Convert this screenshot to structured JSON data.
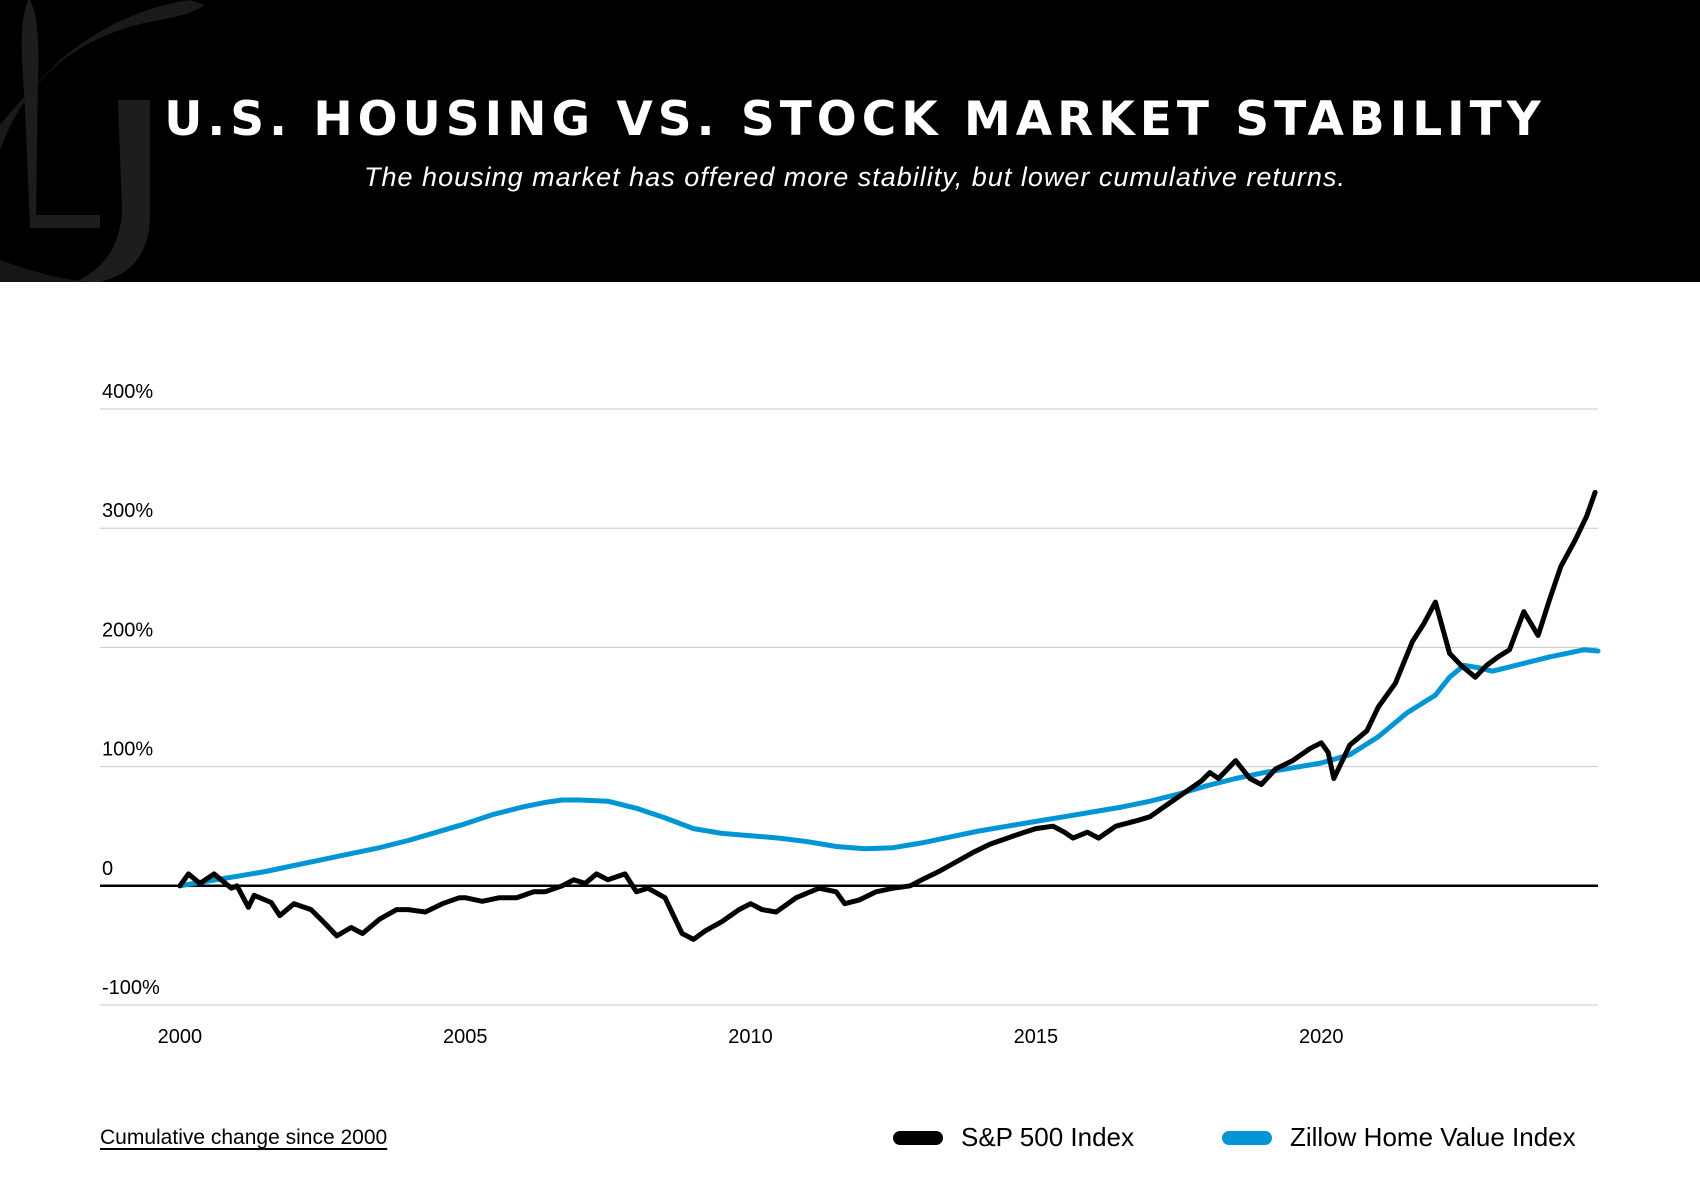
{
  "header": {
    "title": "U.S. HOUSING VS. STOCK MARKET STABILITY",
    "subtitle": "The housing market has offered more stability, but lower cumulative returns.",
    "background": "#000000",
    "logo": "pj-monogram-logo"
  },
  "footnote": "Cumulative change since 2000",
  "legend": [
    {
      "label": "S&P 500 Index",
      "color": "#000000"
    },
    {
      "label": "Zillow Home Value Index",
      "color": "#0096d6"
    }
  ],
  "chart_data": {
    "type": "line",
    "title": "U.S. HOUSING VS. STOCK MARKET STABILITY",
    "xlabel": "",
    "ylabel": "",
    "xlim": [
      1998.6,
      2024.85
    ],
    "ylim": [
      -100,
      400
    ],
    "y_ticks": [
      400,
      300,
      200,
      100,
      0,
      -100
    ],
    "y_tick_labels": [
      "400%",
      "300%",
      "200%",
      "100%",
      "0",
      "-100%"
    ],
    "x_ticks": [
      2000,
      2005,
      2010,
      2015,
      2020
    ],
    "x_tick_labels": [
      "2000",
      "2005",
      "2010",
      "2015",
      "2020"
    ],
    "grid": true,
    "legend_position": "bottom-right",
    "series": [
      {
        "name": "S&P 500 Index",
        "color": "#000000",
        "points": [
          [
            2000.0,
            0
          ],
          [
            2000.15,
            10
          ],
          [
            2000.35,
            2
          ],
          [
            2000.6,
            10
          ],
          [
            2000.8,
            2
          ],
          [
            2000.9,
            -2
          ],
          [
            2001.0,
            0
          ],
          [
            2001.2,
            -18
          ],
          [
            2001.3,
            -8
          ],
          [
            2001.6,
            -14
          ],
          [
            2001.75,
            -25
          ],
          [
            2002.0,
            -15
          ],
          [
            2002.3,
            -20
          ],
          [
            2002.55,
            -32
          ],
          [
            2002.75,
            -42
          ],
          [
            2003.0,
            -35
          ],
          [
            2003.2,
            -40
          ],
          [
            2003.5,
            -28
          ],
          [
            2003.8,
            -20
          ],
          [
            2004.0,
            -20
          ],
          [
            2004.3,
            -22
          ],
          [
            2004.6,
            -15
          ],
          [
            2004.9,
            -10
          ],
          [
            2005.0,
            -10
          ],
          [
            2005.3,
            -13
          ],
          [
            2005.6,
            -10
          ],
          [
            2005.9,
            -10
          ],
          [
            2006.2,
            -5
          ],
          [
            2006.4,
            -5
          ],
          [
            2006.7,
            0
          ],
          [
            2006.9,
            5
          ],
          [
            2007.1,
            2
          ],
          [
            2007.3,
            10
          ],
          [
            2007.5,
            5
          ],
          [
            2007.8,
            10
          ],
          [
            2008.0,
            -5
          ],
          [
            2008.2,
            -2
          ],
          [
            2008.5,
            -10
          ],
          [
            2008.65,
            -25
          ],
          [
            2008.8,
            -40
          ],
          [
            2009.0,
            -45
          ],
          [
            2009.2,
            -38
          ],
          [
            2009.5,
            -30
          ],
          [
            2009.8,
            -20
          ],
          [
            2010.0,
            -15
          ],
          [
            2010.2,
            -20
          ],
          [
            2010.45,
            -22
          ],
          [
            2010.8,
            -10
          ],
          [
            2011.2,
            -2
          ],
          [
            2011.5,
            -5
          ],
          [
            2011.65,
            -15
          ],
          [
            2011.9,
            -12
          ],
          [
            2012.2,
            -5
          ],
          [
            2012.5,
            -2
          ],
          [
            2012.8,
            0
          ],
          [
            2013.0,
            5
          ],
          [
            2013.3,
            12
          ],
          [
            2013.6,
            20
          ],
          [
            2013.9,
            28
          ],
          [
            2014.2,
            35
          ],
          [
            2014.5,
            40
          ],
          [
            2014.8,
            45
          ],
          [
            2015.0,
            48
          ],
          [
            2015.3,
            50
          ],
          [
            2015.5,
            45
          ],
          [
            2015.65,
            40
          ],
          [
            2015.9,
            45
          ],
          [
            2016.1,
            40
          ],
          [
            2016.4,
            50
          ],
          [
            2016.8,
            55
          ],
          [
            2017.0,
            58
          ],
          [
            2017.3,
            68
          ],
          [
            2017.6,
            78
          ],
          [
            2017.9,
            88
          ],
          [
            2018.05,
            95
          ],
          [
            2018.2,
            90
          ],
          [
            2018.5,
            105
          ],
          [
            2018.75,
            90
          ],
          [
            2018.95,
            85
          ],
          [
            2019.2,
            98
          ],
          [
            2019.5,
            105
          ],
          [
            2019.8,
            115
          ],
          [
            2020.0,
            120
          ],
          [
            2020.12,
            112
          ],
          [
            2020.22,
            90
          ],
          [
            2020.5,
            118
          ],
          [
            2020.8,
            130
          ],
          [
            2021.0,
            150
          ],
          [
            2021.3,
            170
          ],
          [
            2021.6,
            205
          ],
          [
            2021.8,
            220
          ],
          [
            2022.0,
            238
          ],
          [
            2022.25,
            195
          ],
          [
            2022.45,
            185
          ],
          [
            2022.7,
            175
          ],
          [
            2022.9,
            185
          ],
          [
            2023.1,
            192
          ],
          [
            2023.3,
            198
          ],
          [
            2023.55,
            230
          ],
          [
            2023.8,
            210
          ],
          [
            2024.0,
            240
          ],
          [
            2024.2,
            268
          ],
          [
            2024.45,
            290
          ],
          [
            2024.65,
            310
          ],
          [
            2024.8,
            330
          ]
        ]
      },
      {
        "name": "Zillow Home Value Index",
        "color": "#0096d6",
        "points": [
          [
            2000.0,
            0
          ],
          [
            2000.5,
            4
          ],
          [
            2001.0,
            8
          ],
          [
            2001.5,
            12
          ],
          [
            2002.0,
            17
          ],
          [
            2002.5,
            22
          ],
          [
            2003.0,
            27
          ],
          [
            2003.5,
            32
          ],
          [
            2004.0,
            38
          ],
          [
            2004.5,
            45
          ],
          [
            2005.0,
            52
          ],
          [
            2005.5,
            60
          ],
          [
            2006.0,
            66
          ],
          [
            2006.4,
            70
          ],
          [
            2006.7,
            72
          ],
          [
            2007.0,
            72
          ],
          [
            2007.5,
            71
          ],
          [
            2008.0,
            65
          ],
          [
            2008.5,
            57
          ],
          [
            2009.0,
            48
          ],
          [
            2009.5,
            44
          ],
          [
            2010.0,
            42
          ],
          [
            2010.5,
            40
          ],
          [
            2011.0,
            37
          ],
          [
            2011.5,
            33
          ],
          [
            2012.0,
            31
          ],
          [
            2012.5,
            32
          ],
          [
            2013.0,
            36
          ],
          [
            2013.5,
            41
          ],
          [
            2014.0,
            46
          ],
          [
            2014.5,
            50
          ],
          [
            2015.0,
            54
          ],
          [
            2015.5,
            58
          ],
          [
            2016.0,
            62
          ],
          [
            2016.5,
            66
          ],
          [
            2017.0,
            71
          ],
          [
            2017.5,
            77
          ],
          [
            2018.0,
            84
          ],
          [
            2018.5,
            90
          ],
          [
            2019.0,
            95
          ],
          [
            2019.5,
            99
          ],
          [
            2020.0,
            103
          ],
          [
            2020.5,
            110
          ],
          [
            2021.0,
            125
          ],
          [
            2021.5,
            145
          ],
          [
            2022.0,
            160
          ],
          [
            2022.25,
            175
          ],
          [
            2022.5,
            185
          ],
          [
            2022.75,
            183
          ],
          [
            2023.0,
            180
          ],
          [
            2023.5,
            186
          ],
          [
            2024.0,
            192
          ],
          [
            2024.3,
            195
          ],
          [
            2024.6,
            198
          ],
          [
            2024.85,
            197
          ]
        ]
      }
    ]
  }
}
